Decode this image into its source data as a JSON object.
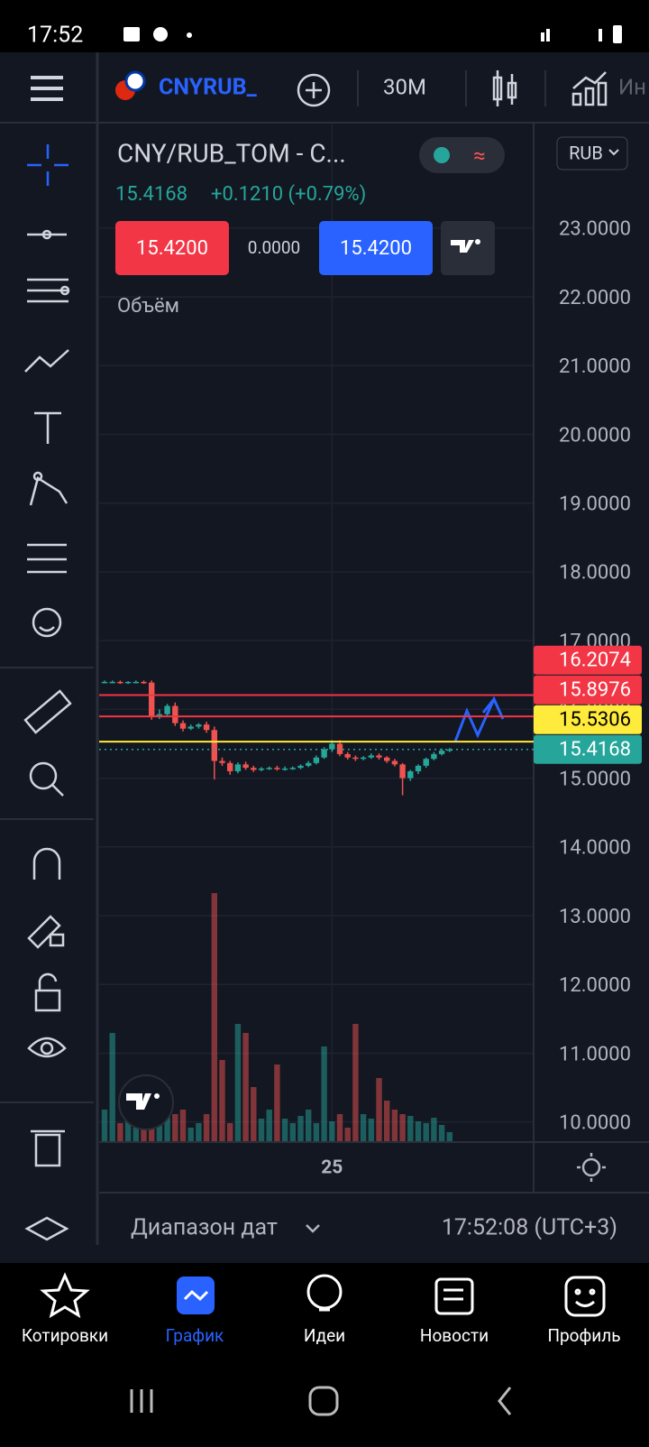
{
  "status_bar": {
    "time": "17:52"
  },
  "toolbar": {
    "symbol": "CNYRUB_",
    "interval": "30M",
    "indicators": "Ин"
  },
  "legend": {
    "title": "CNY/RUB_TOM - C...",
    "last": "15.4168",
    "change": "+0.1210 (+0.79%)",
    "sell": "15.4200",
    "spread": "0.0000",
    "buy": "15.4200",
    "volume_label": "Объём"
  },
  "currency": "RUB",
  "footer": {
    "range": "Диапазон дат",
    "time": "17:52:08 (UTC+3)"
  },
  "nav": [
    "Котировки",
    "График",
    "Идеи",
    "Новости",
    "Профиль"
  ],
  "chart_data": {
    "type": "candlestick",
    "categories": [
      null,
      null,
      null,
      null,
      null,
      null,
      null,
      null,
      null,
      null,
      null,
      null,
      null,
      null,
      null,
      null,
      null,
      null,
      null,
      null,
      null,
      null,
      null,
      null,
      null,
      null,
      null,
      null,
      null,
      "25",
      null,
      null,
      null,
      null,
      null,
      null,
      null,
      null,
      null,
      null,
      null,
      null,
      null,
      null,
      null
    ],
    "open": [
      16.4,
      16.4,
      16.4,
      16.39,
      16.4,
      16.4,
      16.39,
      15.9,
      15.93,
      16.05,
      15.8,
      15.72,
      15.75,
      15.78,
      15.7,
      15.25,
      15.22,
      15.1,
      15.2,
      15.15,
      15.12,
      15.14,
      15.15,
      15.13,
      15.14,
      15.15,
      15.18,
      15.22,
      15.3,
      15.42,
      15.5,
      15.35,
      15.3,
      15.28,
      15.3,
      15.33,
      15.3,
      15.25,
      15.2,
      15.0,
      15.1,
      15.18,
      15.28,
      15.35,
      15.4
    ],
    "high": [
      16.42,
      16.42,
      16.42,
      16.41,
      16.42,
      16.42,
      16.42,
      16.0,
      16.08,
      16.1,
      15.84,
      15.78,
      15.8,
      15.82,
      15.75,
      15.3,
      15.25,
      15.23,
      15.24,
      15.18,
      15.16,
      15.17,
      15.18,
      15.17,
      15.17,
      15.2,
      15.25,
      15.33,
      15.45,
      15.55,
      15.55,
      15.38,
      15.33,
      15.32,
      15.36,
      15.36,
      15.32,
      15.28,
      15.22,
      15.12,
      15.2,
      15.3,
      15.38,
      15.43,
      15.44
    ],
    "low": [
      16.38,
      16.38,
      16.37,
      16.37,
      16.38,
      16.37,
      15.85,
      15.86,
      15.9,
      15.76,
      15.68,
      15.7,
      15.72,
      15.66,
      14.98,
      15.18,
      15.05,
      15.07,
      15.12,
      15.09,
      15.1,
      15.12,
      15.11,
      15.11,
      15.12,
      15.13,
      15.16,
      15.2,
      15.28,
      15.38,
      15.32,
      15.27,
      15.25,
      15.26,
      15.28,
      15.27,
      15.22,
      15.17,
      14.75,
      14.96,
      15.06,
      15.15,
      15.26,
      15.33,
      15.38
    ],
    "close": [
      16.4,
      16.4,
      16.39,
      16.4,
      16.4,
      16.39,
      15.9,
      15.93,
      16.05,
      15.8,
      15.72,
      15.75,
      15.78,
      15.7,
      15.25,
      15.22,
      15.1,
      15.2,
      15.15,
      15.12,
      15.14,
      15.15,
      15.13,
      15.14,
      15.15,
      15.18,
      15.22,
      15.3,
      15.42,
      15.5,
      15.35,
      15.3,
      15.28,
      15.3,
      15.33,
      15.3,
      15.25,
      15.2,
      15.0,
      15.1,
      15.18,
      15.28,
      15.35,
      15.4,
      15.4168
    ],
    "volume": [
      35,
      120,
      20,
      25,
      15,
      30,
      40,
      25,
      60,
      30,
      35,
      15,
      20,
      30,
      275,
      90,
      20,
      130,
      120,
      60,
      25,
      35,
      85,
      25,
      20,
      28,
      35,
      20,
      105,
      22,
      30,
      15,
      130,
      30,
      25,
      70,
      45,
      35,
      30,
      28,
      22,
      20,
      26,
      18,
      10
    ],
    "y2lim": [
      0,
      300
    ],
    "up_color": "#26a69a",
    "down_color": "#ef5350",
    "ylim": [
      9.72,
      24.52
    ],
    "yticks": [
      {
        "value": 10,
        "label": "10.0000"
      },
      {
        "value": 11,
        "label": "11.0000"
      },
      {
        "value": 12,
        "label": "12.0000"
      },
      {
        "value": 13,
        "label": "13.0000"
      },
      {
        "value": 14,
        "label": "14.0000"
      },
      {
        "value": 15,
        "label": "15.0000"
      },
      {
        "value": 16,
        "label": "16.0000"
      },
      {
        "value": 17,
        "label": "17.0000"
      },
      {
        "value": 18,
        "label": "18.0000"
      },
      {
        "value": 19,
        "label": "19.0000"
      },
      {
        "value": 20,
        "label": "20.0000"
      },
      {
        "value": 21,
        "label": "21.0000"
      },
      {
        "value": 22,
        "label": "22.0000"
      },
      {
        "value": 23,
        "label": "23.0000"
      }
    ],
    "grid": true,
    "price_lines": [
      {
        "value": 16.2074,
        "color": "#f23645"
      },
      {
        "value": 15.8976,
        "color": "#f23645"
      },
      {
        "value": 15.5306,
        "color": "#ffeb3b"
      },
      {
        "value": 15.4168,
        "color": "#26a69a"
      }
    ]
  }
}
